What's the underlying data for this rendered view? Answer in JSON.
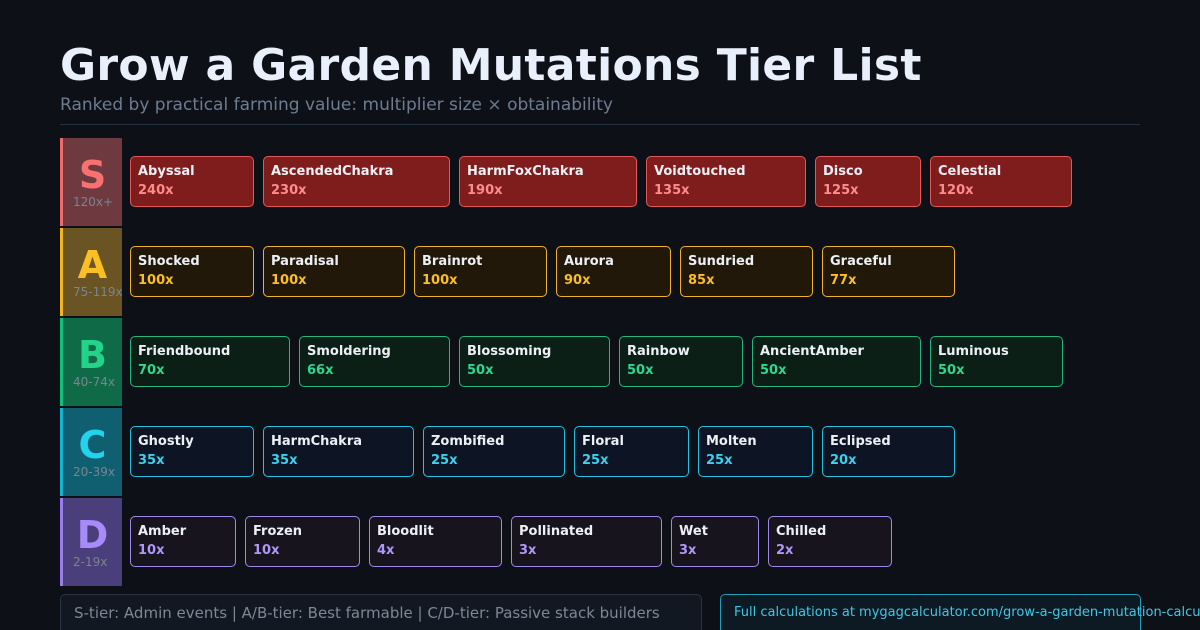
{
  "header": {
    "title": "Grow a Garden Mutations Tier List",
    "subtitle": "Ranked by practical farming value: multiplier size × obtainability"
  },
  "tiers": [
    {
      "letter": "S",
      "range": "120x+",
      "items": [
        {
          "name": "Abyssal",
          "mult": "240x"
        },
        {
          "name": "AscendedChakra",
          "mult": "230x"
        },
        {
          "name": "HarmFoxChakra",
          "mult": "190x"
        },
        {
          "name": "Voidtouched",
          "mult": "135x"
        },
        {
          "name": "Disco",
          "mult": "125x"
        },
        {
          "name": "Celestial",
          "mult": "120x"
        }
      ]
    },
    {
      "letter": "A",
      "range": "75-119x",
      "items": [
        {
          "name": "Shocked",
          "mult": "100x"
        },
        {
          "name": "Paradisal",
          "mult": "100x"
        },
        {
          "name": "Brainrot",
          "mult": "100x"
        },
        {
          "name": "Aurora",
          "mult": "90x"
        },
        {
          "name": "Sundried",
          "mult": "85x"
        },
        {
          "name": "Graceful",
          "mult": "77x"
        }
      ]
    },
    {
      "letter": "B",
      "range": "40-74x",
      "items": [
        {
          "name": "Friendbound",
          "mult": "70x"
        },
        {
          "name": "Smoldering",
          "mult": "66x"
        },
        {
          "name": "Blossoming",
          "mult": "50x"
        },
        {
          "name": "Rainbow",
          "mult": "50x"
        },
        {
          "name": "AncientAmber",
          "mult": "50x"
        },
        {
          "name": "Luminous",
          "mult": "50x"
        }
      ]
    },
    {
      "letter": "C",
      "range": "20-39x",
      "items": [
        {
          "name": "Ghostly",
          "mult": "35x"
        },
        {
          "name": "HarmChakra",
          "mult": "35x"
        },
        {
          "name": "Zombified",
          "mult": "25x"
        },
        {
          "name": "Floral",
          "mult": "25x"
        },
        {
          "name": "Molten",
          "mult": "25x"
        },
        {
          "name": "Eclipsed",
          "mult": "20x"
        }
      ]
    },
    {
      "letter": "D",
      "range": "2-19x",
      "items": [
        {
          "name": "Amber",
          "mult": "10x"
        },
        {
          "name": "Frozen",
          "mult": "10x"
        },
        {
          "name": "Bloodlit",
          "mult": "4x"
        },
        {
          "name": "Pollinated",
          "mult": "3x"
        },
        {
          "name": "Wet",
          "mult": "3x"
        },
        {
          "name": "Chilled",
          "mult": "2x"
        }
      ]
    }
  ],
  "footer": {
    "legend": "S-tier: Admin events  |  A/B-tier: Best farmable  |  C/D-tier: Passive stack builders",
    "link": "Full calculations at mygagcalculator.com/grow-a-garden-mutation-calculator"
  },
  "colors": {
    "background": "#0d1117",
    "S": "#f87171",
    "A": "#fbbf24",
    "B": "#22d38a",
    "C": "#22d3ee",
    "D": "#a78bfa"
  }
}
